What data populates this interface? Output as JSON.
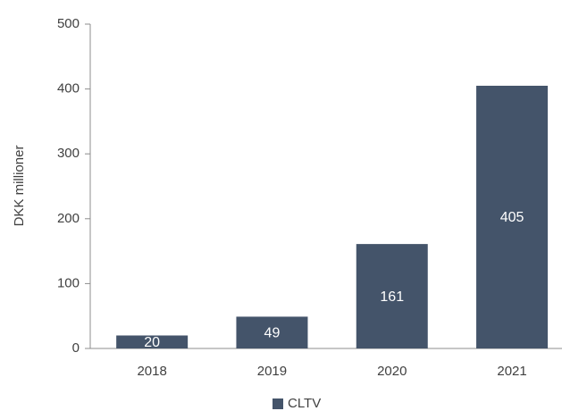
{
  "chart_data": {
    "type": "bar",
    "y_label": "DKK millioner",
    "categories": [
      "2018",
      "2019",
      "2020",
      "2021"
    ],
    "series": [
      {
        "name": "CLTV",
        "color": "#44546a",
        "values": [
          20,
          49,
          161,
          405
        ]
      }
    ],
    "ylim": [
      0,
      500
    ],
    "yticks": [
      0,
      100,
      200,
      300,
      400,
      500
    ],
    "grid": false,
    "legend": "bottom"
  }
}
